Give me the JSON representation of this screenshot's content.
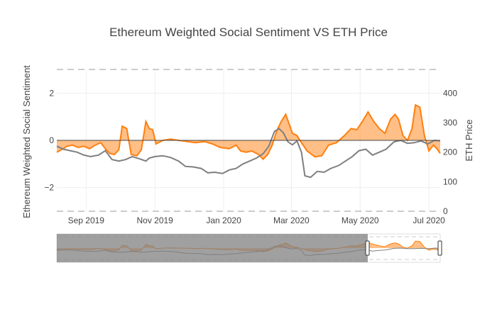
{
  "chart_data": {
    "type": "area",
    "title": "Ethereum Weighted Social Sentiment VS ETH Price",
    "ylabel": "Ethereum Weighted Social Sentiment",
    "y2label": "ETH Price",
    "ylim": [
      -3.0,
      3.0
    ],
    "y2lim": [
      0,
      480
    ],
    "xlim": [
      "2019-08-06",
      "2020-07-11"
    ],
    "y_ticks": [
      {
        "value": 2,
        "label": "2"
      },
      {
        "value": 0,
        "label": "0"
      },
      {
        "value": -2,
        "label": "−2"
      }
    ],
    "y2_ticks": [
      {
        "value": 0,
        "label": "0"
      },
      {
        "value": 100,
        "label": "100"
      },
      {
        "value": 200,
        "label": "200"
      },
      {
        "value": 300,
        "label": "300"
      },
      {
        "value": 400,
        "label": "400"
      }
    ],
    "x_ticks": [
      {
        "date": "2019-09-01",
        "label": "Sep 2019"
      },
      {
        "date": "2019-11-01",
        "label": "Nov 2019"
      },
      {
        "date": "2020-01-01",
        "label": "Jan 2020"
      },
      {
        "date": "2020-03-01",
        "label": "Mar 2020"
      },
      {
        "date": "2020-05-01",
        "label": "May 2020"
      },
      {
        "date": "2020-07-01",
        "label": "Jul 2020"
      }
    ],
    "reference_lines": [
      {
        "axis": "y",
        "value": 3.0,
        "style": "dashed"
      },
      {
        "axis": "y",
        "value": -3.0,
        "style": "dashed"
      }
    ],
    "grid": true,
    "legend": "none",
    "colors": {
      "sentiment": "#ff7f0e",
      "price": "#7f7f7f"
    },
    "series": [
      {
        "axis": "y",
        "fill": "tozero",
        "points": [
          [
            "2019-08-06",
            -0.5
          ],
          [
            "2019-08-10",
            -0.4
          ],
          [
            "2019-08-15",
            -0.25
          ],
          [
            "2019-08-20",
            -0.2
          ],
          [
            "2019-08-25",
            -0.3
          ],
          [
            "2019-08-30",
            -0.25
          ],
          [
            "2019-09-04",
            -0.35
          ],
          [
            "2019-09-09",
            -0.2
          ],
          [
            "2019-09-14",
            -0.1
          ],
          [
            "2019-09-18",
            -0.35
          ],
          [
            "2019-09-22",
            -0.55
          ],
          [
            "2019-09-26",
            -0.6
          ],
          [
            "2019-09-30",
            -0.4
          ],
          [
            "2019-10-03",
            0.6
          ],
          [
            "2019-10-07",
            0.5
          ],
          [
            "2019-10-11",
            -0.6
          ],
          [
            "2019-10-16",
            -0.65
          ],
          [
            "2019-10-20",
            -0.4
          ],
          [
            "2019-10-24",
            0.8
          ],
          [
            "2019-10-27",
            0.5
          ],
          [
            "2019-10-30",
            0.45
          ],
          [
            "2019-11-02",
            -0.15
          ],
          [
            "2019-11-08",
            0.0
          ],
          [
            "2019-11-15",
            0.05
          ],
          [
            "2019-11-22",
            0.0
          ],
          [
            "2019-11-30",
            -0.05
          ],
          [
            "2019-12-07",
            -0.1
          ],
          [
            "2019-12-15",
            -0.05
          ],
          [
            "2019-12-22",
            -0.15
          ],
          [
            "2019-12-29",
            -0.3
          ],
          [
            "2020-01-06",
            -0.35
          ],
          [
            "2020-01-12",
            -0.2
          ],
          [
            "2020-01-16",
            -0.45
          ],
          [
            "2020-01-21",
            -0.5
          ],
          [
            "2020-01-26",
            -0.45
          ],
          [
            "2020-02-01",
            -0.6
          ],
          [
            "2020-02-05",
            -0.8
          ],
          [
            "2020-02-09",
            -0.6
          ],
          [
            "2020-02-13",
            -0.2
          ],
          [
            "2020-02-17",
            0.4
          ],
          [
            "2020-02-21",
            0.8
          ],
          [
            "2020-02-25",
            1.1
          ],
          [
            "2020-02-28",
            0.7
          ],
          [
            "2020-03-02",
            0.3
          ],
          [
            "2020-03-06",
            0.2
          ],
          [
            "2020-03-10",
            -0.1
          ],
          [
            "2020-03-15",
            -0.45
          ],
          [
            "2020-03-22",
            -0.7
          ],
          [
            "2020-03-28",
            -0.65
          ],
          [
            "2020-04-03",
            -0.2
          ],
          [
            "2020-04-10",
            -0.1
          ],
          [
            "2020-04-17",
            0.2
          ],
          [
            "2020-04-23",
            0.5
          ],
          [
            "2020-04-28",
            0.45
          ],
          [
            "2020-05-03",
            0.8
          ],
          [
            "2020-05-08",
            1.2
          ],
          [
            "2020-05-13",
            0.8
          ],
          [
            "2020-05-18",
            0.5
          ],
          [
            "2020-05-23",
            0.3
          ],
          [
            "2020-05-28",
            0.9
          ],
          [
            "2020-06-01",
            1.1
          ],
          [
            "2020-06-04",
            0.9
          ],
          [
            "2020-06-08",
            0.2
          ],
          [
            "2020-06-12",
            0.0
          ],
          [
            "2020-06-16",
            0.5
          ],
          [
            "2020-06-19",
            1.5
          ],
          [
            "2020-06-23",
            1.4
          ],
          [
            "2020-06-27",
            0.2
          ],
          [
            "2020-07-01",
            -0.45
          ],
          [
            "2020-07-05",
            -0.2
          ],
          [
            "2020-07-08",
            -0.35
          ],
          [
            "2020-07-11",
            -0.55
          ]
        ]
      },
      {
        "axis": "y2",
        "points": [
          [
            "2019-08-06",
            220
          ],
          [
            "2019-08-12",
            210
          ],
          [
            "2019-08-18",
            205
          ],
          [
            "2019-08-24",
            200
          ],
          [
            "2019-08-30",
            190
          ],
          [
            "2019-09-05",
            185
          ],
          [
            "2019-09-12",
            190
          ],
          [
            "2019-09-18",
            205
          ],
          [
            "2019-09-24",
            175
          ],
          [
            "2019-09-30",
            170
          ],
          [
            "2019-10-06",
            175
          ],
          [
            "2019-10-12",
            185
          ],
          [
            "2019-10-18",
            178
          ],
          [
            "2019-10-24",
            170
          ],
          [
            "2019-10-27",
            180
          ],
          [
            "2019-11-01",
            185
          ],
          [
            "2019-11-08",
            188
          ],
          [
            "2019-11-15",
            182
          ],
          [
            "2019-11-22",
            170
          ],
          [
            "2019-11-28",
            152
          ],
          [
            "2019-12-05",
            150
          ],
          [
            "2019-12-12",
            145
          ],
          [
            "2019-12-18",
            130
          ],
          [
            "2019-12-24",
            132
          ],
          [
            "2019-12-31",
            128
          ],
          [
            "2020-01-06",
            140
          ],
          [
            "2020-01-12",
            145
          ],
          [
            "2020-01-18",
            160
          ],
          [
            "2020-01-24",
            170
          ],
          [
            "2020-01-30",
            180
          ],
          [
            "2020-02-05",
            195
          ],
          [
            "2020-02-10",
            220
          ],
          [
            "2020-02-15",
            270
          ],
          [
            "2020-02-19",
            280
          ],
          [
            "2020-02-23",
            265
          ],
          [
            "2020-02-27",
            235
          ],
          [
            "2020-03-02",
            225
          ],
          [
            "2020-03-06",
            238
          ],
          [
            "2020-03-10",
            200
          ],
          [
            "2020-03-13",
            120
          ],
          [
            "2020-03-18",
            115
          ],
          [
            "2020-03-24",
            135
          ],
          [
            "2020-03-30",
            132
          ],
          [
            "2020-04-05",
            145
          ],
          [
            "2020-04-12",
            155
          ],
          [
            "2020-04-18",
            170
          ],
          [
            "2020-04-24",
            185
          ],
          [
            "2020-04-30",
            205
          ],
          [
            "2020-05-06",
            210
          ],
          [
            "2020-05-12",
            190
          ],
          [
            "2020-05-18",
            200
          ],
          [
            "2020-05-24",
            210
          ],
          [
            "2020-05-31",
            235
          ],
          [
            "2020-06-06",
            240
          ],
          [
            "2020-06-12",
            230
          ],
          [
            "2020-06-18",
            232
          ],
          [
            "2020-06-24",
            238
          ],
          [
            "2020-06-30",
            228
          ],
          [
            "2020-07-06",
            240
          ],
          [
            "2020-07-11",
            238
          ]
        ]
      }
    ],
    "rangeslider": {
      "visible": true
    }
  }
}
